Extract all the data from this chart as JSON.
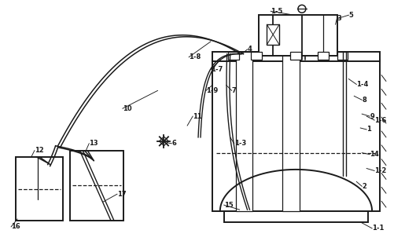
{
  "bg_color": "#ffffff",
  "line_color": "#1a1a1a",
  "fig_width": 5.15,
  "fig_height": 3.21,
  "lw_main": 1.4,
  "lw_thin": 0.9,
  "lw_tube": 1.1,
  "font_size": 6.0
}
